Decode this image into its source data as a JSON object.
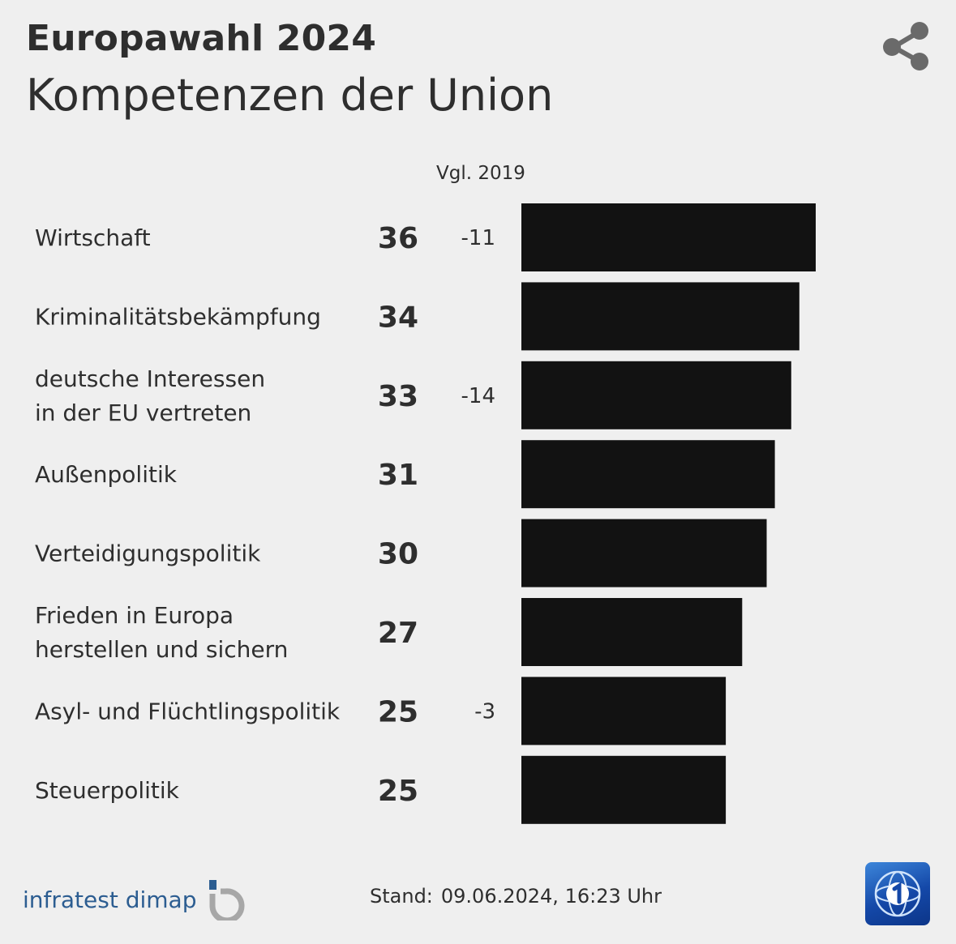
{
  "header": {
    "kicker": "Europawahl 2024",
    "title": "Kompetenzen der Union"
  },
  "toolbar": {
    "share_icon": "share-icon"
  },
  "chart_data": {
    "type": "bar",
    "orientation": "horizontal",
    "title": "Kompetenzen der Union",
    "change_column_label": "Vgl. 2019",
    "categories": [
      [
        "Wirtschaft"
      ],
      [
        "Kriminalitätsbekämpfung"
      ],
      [
        "deutsche Interessen",
        "in der EU vertreten"
      ],
      [
        "Außenpolitik"
      ],
      [
        "Verteidigungspolitik"
      ],
      [
        "Frieden in Europa",
        "herstellen und sichern"
      ],
      [
        "Asyl- und Flüchtlingspolitik"
      ],
      [
        "Steuerpolitik"
      ]
    ],
    "values": [
      36,
      34,
      33,
      31,
      30,
      27,
      25,
      25
    ],
    "changes": [
      "-11",
      "",
      "-14",
      "",
      "",
      "",
      "-3",
      ""
    ],
    "bar_color": "#121212",
    "grid": false,
    "legend": "none"
  },
  "footer": {
    "brand": "infratest dimap",
    "stand_label": "Stand:",
    "stand_value": "09.06.2024, 16:23 Uhr",
    "logo_icon": "ard-logo-icon"
  }
}
